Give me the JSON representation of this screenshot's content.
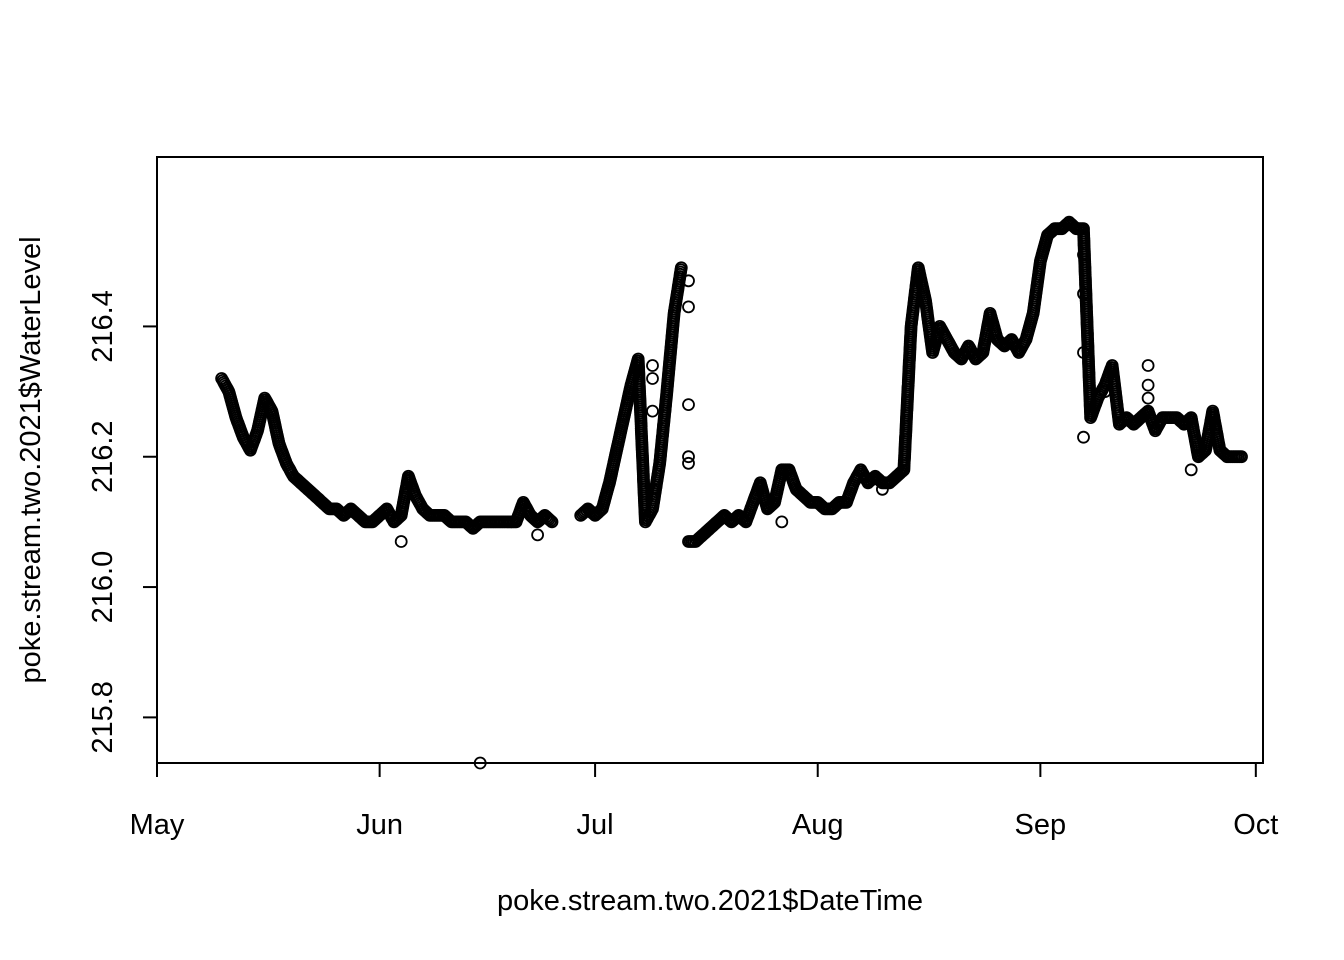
{
  "chart_data": {
    "type": "scatter",
    "title": "",
    "xlabel": "poke.stream.two.2021$DateTime",
    "ylabel": "poke.stream.two.2021$WaterLevel",
    "x_axis": {
      "kind": "date",
      "range": [
        "2021-05-01",
        "2021-10-02"
      ],
      "ticks": [
        {
          "date": "2021-05-01",
          "label": "May"
        },
        {
          "date": "2021-06-01",
          "label": "Jun"
        },
        {
          "date": "2021-07-01",
          "label": "Jul"
        },
        {
          "date": "2021-08-01",
          "label": "Aug"
        },
        {
          "date": "2021-09-01",
          "label": "Sep"
        },
        {
          "date": "2021-10-01",
          "label": "Oct"
        }
      ]
    },
    "y_axis": {
      "range": [
        215.73,
        216.66
      ],
      "ticks": [
        {
          "value": 215.8,
          "label": "215.8"
        },
        {
          "value": 216.0,
          "label": "216.0"
        },
        {
          "value": 216.2,
          "label": "216.2"
        },
        {
          "value": 216.4,
          "label": "216.4"
        }
      ]
    },
    "grid": false,
    "legend": "none",
    "marker": "open-circle",
    "color": "#000000",
    "series": [
      {
        "segments": [
          [
            [
              "2021-05-10",
              216.32
            ],
            [
              "2021-05-11",
              216.3
            ],
            [
              "2021-05-12",
              216.26
            ],
            [
              "2021-05-13",
              216.23
            ],
            [
              "2021-05-14",
              216.21
            ],
            [
              "2021-05-15",
              216.24
            ],
            [
              "2021-05-16",
              216.29
            ],
            [
              "2021-05-17",
              216.27
            ],
            [
              "2021-05-18",
              216.22
            ],
            [
              "2021-05-19",
              216.19
            ],
            [
              "2021-05-20",
              216.17
            ],
            [
              "2021-05-21",
              216.16
            ],
            [
              "2021-05-22",
              216.15
            ],
            [
              "2021-05-23",
              216.14
            ],
            [
              "2021-05-24",
              216.13
            ],
            [
              "2021-05-25",
              216.12
            ],
            [
              "2021-05-26",
              216.12
            ],
            [
              "2021-05-27",
              216.11
            ],
            [
              "2021-05-28",
              216.12
            ],
            [
              "2021-05-29",
              216.11
            ],
            [
              "2021-05-30",
              216.1
            ],
            [
              "2021-05-31",
              216.1
            ],
            [
              "2021-06-01",
              216.11
            ],
            [
              "2021-06-02",
              216.12
            ],
            [
              "2021-06-03",
              216.1
            ],
            [
              "2021-06-04",
              216.11
            ],
            [
              "2021-06-05",
              216.17
            ],
            [
              "2021-06-06",
              216.14
            ],
            [
              "2021-06-07",
              216.12
            ],
            [
              "2021-06-08",
              216.11
            ],
            [
              "2021-06-09",
              216.11
            ],
            [
              "2021-06-10",
              216.11
            ],
            [
              "2021-06-11",
              216.1
            ],
            [
              "2021-06-12",
              216.1
            ],
            [
              "2021-06-13",
              216.1
            ],
            [
              "2021-06-14",
              216.09
            ],
            [
              "2021-06-15",
              216.1
            ],
            [
              "2021-06-16",
              216.1
            ],
            [
              "2021-06-17",
              216.1
            ],
            [
              "2021-06-18",
              216.1
            ],
            [
              "2021-06-19",
              216.1
            ],
            [
              "2021-06-20",
              216.1
            ],
            [
              "2021-06-21",
              216.13
            ],
            [
              "2021-06-22",
              216.11
            ],
            [
              "2021-06-23",
              216.1
            ],
            [
              "2021-06-24",
              216.11
            ],
            [
              "2021-06-25",
              216.1
            ]
          ],
          [
            [
              "2021-06-29",
              216.11
            ],
            [
              "2021-06-30",
              216.12
            ],
            [
              "2021-07-01",
              216.11
            ],
            [
              "2021-07-02",
              216.12
            ],
            [
              "2021-07-03",
              216.16
            ],
            [
              "2021-07-04",
              216.21
            ],
            [
              "2021-07-05",
              216.26
            ],
            [
              "2021-07-06",
              216.31
            ],
            [
              "2021-07-07",
              216.35
            ],
            [
              "2021-07-08",
              216.1
            ],
            [
              "2021-07-09",
              216.12
            ],
            [
              "2021-07-10",
              216.19
            ],
            [
              "2021-07-11",
              216.3
            ],
            [
              "2021-07-12",
              216.42
            ],
            [
              "2021-07-13",
              216.49
            ]
          ],
          [
            [
              "2021-07-14",
              216.07
            ],
            [
              "2021-07-15",
              216.07
            ],
            [
              "2021-07-16",
              216.08
            ],
            [
              "2021-07-17",
              216.09
            ],
            [
              "2021-07-18",
              216.1
            ],
            [
              "2021-07-19",
              216.11
            ],
            [
              "2021-07-20",
              216.1
            ],
            [
              "2021-07-21",
              216.11
            ],
            [
              "2021-07-22",
              216.1
            ],
            [
              "2021-07-23",
              216.13
            ],
            [
              "2021-07-24",
              216.16
            ],
            [
              "2021-07-25",
              216.12
            ],
            [
              "2021-07-26",
              216.13
            ],
            [
              "2021-07-27",
              216.18
            ],
            [
              "2021-07-28",
              216.18
            ],
            [
              "2021-07-29",
              216.15
            ],
            [
              "2021-07-30",
              216.14
            ],
            [
              "2021-07-31",
              216.13
            ],
            [
              "2021-08-01",
              216.13
            ],
            [
              "2021-08-02",
              216.12
            ],
            [
              "2021-08-03",
              216.12
            ],
            [
              "2021-08-04",
              216.13
            ],
            [
              "2021-08-05",
              216.13
            ],
            [
              "2021-08-06",
              216.16
            ],
            [
              "2021-08-07",
              216.18
            ],
            [
              "2021-08-08",
              216.16
            ],
            [
              "2021-08-09",
              216.17
            ],
            [
              "2021-08-10",
              216.16
            ],
            [
              "2021-08-11",
              216.16
            ],
            [
              "2021-08-12",
              216.17
            ],
            [
              "2021-08-13",
              216.18
            ],
            [
              "2021-08-14",
              216.4
            ],
            [
              "2021-08-15",
              216.49
            ],
            [
              "2021-08-16",
              216.44
            ],
            [
              "2021-08-17",
              216.36
            ],
            [
              "2021-08-18",
              216.4
            ],
            [
              "2021-08-19",
              216.38
            ],
            [
              "2021-08-20",
              216.36
            ],
            [
              "2021-08-21",
              216.35
            ],
            [
              "2021-08-22",
              216.37
            ],
            [
              "2021-08-23",
              216.35
            ],
            [
              "2021-08-24",
              216.36
            ],
            [
              "2021-08-25",
              216.42
            ],
            [
              "2021-08-26",
              216.38
            ],
            [
              "2021-08-27",
              216.37
            ],
            [
              "2021-08-28",
              216.38
            ],
            [
              "2021-08-29",
              216.36
            ],
            [
              "2021-08-30",
              216.38
            ],
            [
              "2021-08-31",
              216.42
            ],
            [
              "2021-09-01",
              216.5
            ],
            [
              "2021-09-02",
              216.54
            ],
            [
              "2021-09-03",
              216.55
            ],
            [
              "2021-09-04",
              216.55
            ],
            [
              "2021-09-05",
              216.56
            ],
            [
              "2021-09-06",
              216.55
            ],
            [
              "2021-09-07",
              216.55
            ],
            [
              "2021-09-08",
              216.26
            ],
            [
              "2021-09-09",
              216.29
            ],
            [
              "2021-09-10",
              216.31
            ],
            [
              "2021-09-11",
              216.34
            ],
            [
              "2021-09-12",
              216.25
            ],
            [
              "2021-09-13",
              216.26
            ],
            [
              "2021-09-14",
              216.25
            ],
            [
              "2021-09-15",
              216.26
            ],
            [
              "2021-09-16",
              216.27
            ],
            [
              "2021-09-17",
              216.24
            ],
            [
              "2021-09-18",
              216.26
            ],
            [
              "2021-09-19",
              216.26
            ],
            [
              "2021-09-20",
              216.26
            ],
            [
              "2021-09-21",
              216.25
            ],
            [
              "2021-09-22",
              216.26
            ],
            [
              "2021-09-23",
              216.2
            ],
            [
              "2021-09-24",
              216.21
            ],
            [
              "2021-09-25",
              216.27
            ],
            [
              "2021-09-26",
              216.21
            ],
            [
              "2021-09-27",
              216.2
            ],
            [
              "2021-09-28",
              216.2
            ],
            [
              "2021-09-29",
              216.2
            ]
          ]
        ],
        "outliers": [
          [
            "2021-06-15",
            215.73
          ],
          [
            "2021-06-04",
            216.07
          ],
          [
            "2021-06-23",
            216.08
          ],
          [
            "2021-07-09",
            216.15
          ],
          [
            "2021-07-09",
            216.27
          ],
          [
            "2021-07-09",
            216.32
          ],
          [
            "2021-07-09",
            216.34
          ],
          [
            "2021-07-14",
            216.43
          ],
          [
            "2021-07-14",
            216.47
          ],
          [
            "2021-07-14",
            216.28
          ],
          [
            "2021-07-14",
            216.2
          ],
          [
            "2021-07-14",
            216.19
          ],
          [
            "2021-09-07",
            216.51
          ],
          [
            "2021-09-07",
            216.45
          ],
          [
            "2021-09-07",
            216.36
          ],
          [
            "2021-09-07",
            216.23
          ],
          [
            "2021-09-10",
            216.3
          ],
          [
            "2021-09-16",
            216.34
          ],
          [
            "2021-09-16",
            216.31
          ],
          [
            "2021-09-16",
            216.29
          ],
          [
            "2021-09-22",
            216.18
          ],
          [
            "2021-07-27",
            216.1
          ],
          [
            "2021-08-10",
            216.15
          ]
        ]
      }
    ]
  }
}
